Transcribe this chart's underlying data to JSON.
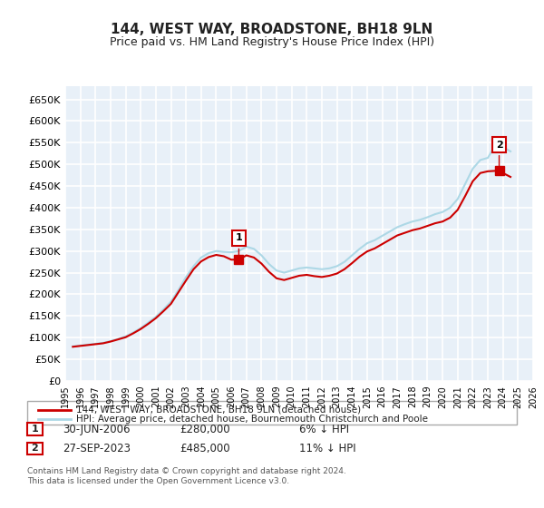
{
  "title": "144, WEST WAY, BROADSTONE, BH18 9LN",
  "subtitle": "Price paid vs. HM Land Registry's House Price Index (HPI)",
  "ylabel_ticks": [
    "£0",
    "£50K",
    "£100K",
    "£150K",
    "£200K",
    "£250K",
    "£300K",
    "£350K",
    "£400K",
    "£450K",
    "£500K",
    "£550K",
    "£600K",
    "£650K"
  ],
  "ytick_values": [
    0,
    50000,
    100000,
    150000,
    200000,
    250000,
    300000,
    350000,
    400000,
    450000,
    500000,
    550000,
    600000,
    650000
  ],
  "ylim": [
    0,
    680000
  ],
  "hpi_color": "#add8e6",
  "price_color": "#cc0000",
  "background_color": "#e8f0f8",
  "grid_color": "#ffffff",
  "legend_label_price": "144, WEST WAY, BROADSTONE, BH18 9LN (detached house)",
  "legend_label_hpi": "HPI: Average price, detached house, Bournemouth Christchurch and Poole",
  "transaction1_date": "30-JUN-2006",
  "transaction1_price": 280000,
  "transaction1_label": "1",
  "transaction1_note": "6% ↓ HPI",
  "transaction2_date": "27-SEP-2023",
  "transaction2_price": 485000,
  "transaction2_label": "2",
  "transaction2_note": "11% ↓ HPI",
  "footer": "Contains HM Land Registry data © Crown copyright and database right 2024.\nThis data is licensed under the Open Government Licence v3.0.",
  "xtick_years": [
    "1995",
    "1996",
    "1997",
    "1998",
    "1999",
    "2000",
    "2001",
    "2002",
    "2003",
    "2004",
    "2005",
    "2006",
    "2007",
    "2008",
    "2009",
    "2010",
    "2011",
    "2012",
    "2013",
    "2014",
    "2015",
    "2016",
    "2017",
    "2018",
    "2019",
    "2020",
    "2021",
    "2022",
    "2023",
    "2024",
    "2025",
    "2026"
  ],
  "hpi_data_years": [
    1995.5,
    1996.0,
    1996.5,
    1997.0,
    1997.5,
    1998.0,
    1998.5,
    1999.0,
    1999.5,
    2000.0,
    2000.5,
    2001.0,
    2001.5,
    2002.0,
    2002.5,
    2003.0,
    2003.5,
    2004.0,
    2004.5,
    2005.0,
    2005.5,
    2006.0,
    2006.5,
    2007.0,
    2007.5,
    2008.0,
    2008.5,
    2009.0,
    2009.5,
    2010.0,
    2010.5,
    2011.0,
    2011.5,
    2012.0,
    2012.5,
    2013.0,
    2013.5,
    2014.0,
    2014.5,
    2015.0,
    2015.5,
    2016.0,
    2016.5,
    2017.0,
    2017.5,
    2018.0,
    2018.5,
    2019.0,
    2019.5,
    2020.0,
    2020.5,
    2021.0,
    2021.5,
    2022.0,
    2022.5,
    2023.0,
    2023.5,
    2024.0,
    2024.5
  ],
  "hpi_values": [
    80000,
    82000,
    84000,
    86000,
    88000,
    92000,
    97000,
    103000,
    112000,
    122000,
    135000,
    148000,
    165000,
    183000,
    210000,
    240000,
    265000,
    285000,
    295000,
    300000,
    298000,
    297000,
    300000,
    310000,
    305000,
    290000,
    270000,
    255000,
    250000,
    255000,
    260000,
    262000,
    260000,
    258000,
    260000,
    265000,
    275000,
    290000,
    305000,
    318000,
    325000,
    335000,
    345000,
    355000,
    362000,
    368000,
    372000,
    378000,
    385000,
    390000,
    400000,
    420000,
    455000,
    490000,
    510000,
    515000,
    545000,
    540000,
    530000
  ],
  "price_data_years": [
    1995.5,
    1996.0,
    1996.5,
    1997.0,
    1997.5,
    1998.0,
    1998.5,
    1999.0,
    1999.5,
    2000.0,
    2000.5,
    2001.0,
    2001.5,
    2002.0,
    2002.5,
    2003.0,
    2003.5,
    2004.0,
    2004.5,
    2005.0,
    2005.5,
    2006.0,
    2006.5,
    2007.0,
    2007.5,
    2008.0,
    2008.5,
    2009.0,
    2009.5,
    2010.0,
    2010.5,
    2011.0,
    2011.5,
    2012.0,
    2012.5,
    2013.0,
    2013.5,
    2014.0,
    2014.5,
    2015.0,
    2015.5,
    2016.0,
    2016.5,
    2017.0,
    2017.5,
    2018.0,
    2018.5,
    2019.0,
    2019.5,
    2020.0,
    2020.5,
    2021.0,
    2021.5,
    2022.0,
    2022.5,
    2023.0,
    2023.5,
    2024.0,
    2024.5
  ],
  "price_values": [
    79000,
    81000,
    83000,
    85000,
    87000,
    91000,
    96000,
    101000,
    110000,
    120000,
    132000,
    145000,
    161000,
    178000,
    205000,
    232000,
    258000,
    276000,
    286000,
    291000,
    288000,
    280000,
    280000,
    290000,
    285000,
    271000,
    252000,
    237000,
    233000,
    238000,
    243000,
    245000,
    242000,
    240000,
    243000,
    248000,
    258000,
    272000,
    287000,
    299000,
    306000,
    316000,
    326000,
    336000,
    342000,
    348000,
    352000,
    358000,
    364000,
    368000,
    377000,
    395000,
    427000,
    461000,
    480000,
    484000,
    485000,
    480000,
    471000
  ]
}
